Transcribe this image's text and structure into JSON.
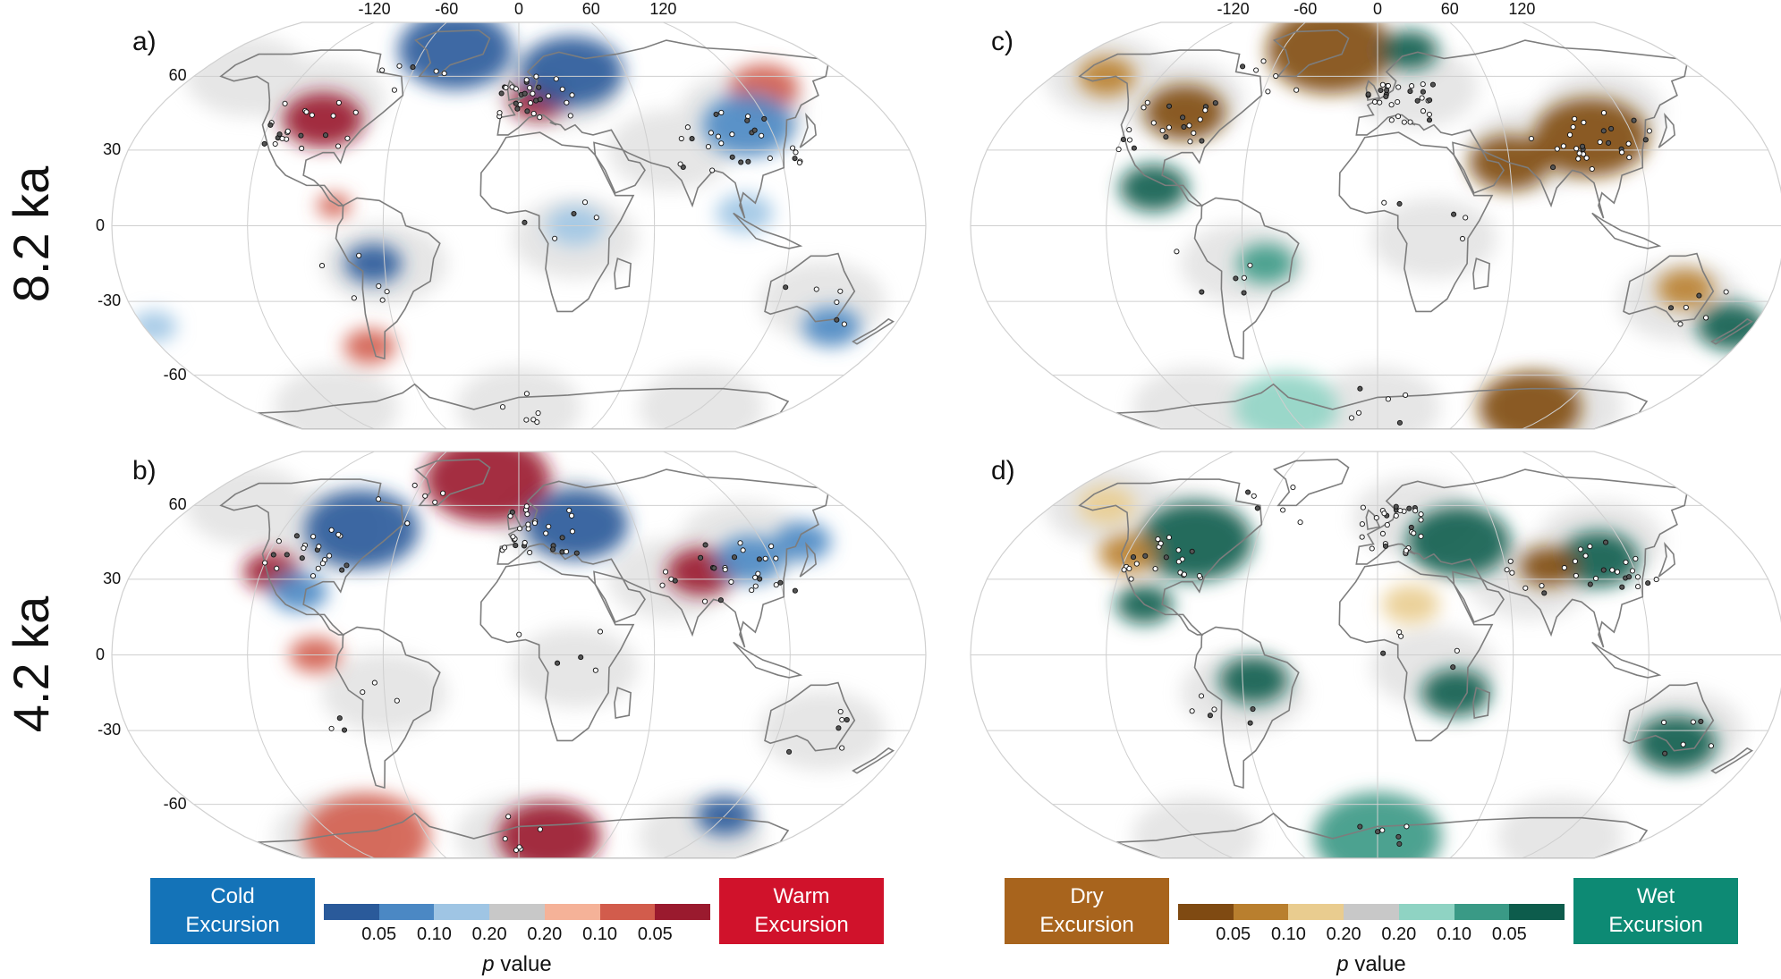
{
  "rows": {
    "top": "8.2 ka",
    "bottom": "4.2 ka"
  },
  "panels": {
    "a": "a)",
    "b": "b)",
    "c": "c)",
    "d": "d)"
  },
  "lon_ticks": [
    "-120",
    "-60",
    "0",
    "60",
    "120"
  ],
  "lat_ticks": [
    "60",
    "30",
    "0",
    "-30",
    "-60"
  ],
  "legend_temperature": {
    "cold_label": "Cold Excursion",
    "warm_label": "Warm Excursion",
    "cold_color": "#1473b8",
    "warm_color": "#d0122b",
    "colors": [
      "#2a5a9a",
      "#4b88c4",
      "#9fc5e4",
      "#c8c8c8",
      "#f5b298",
      "#d25c4c",
      "#9a1a2e"
    ],
    "ticks": [
      "0.05",
      "0.10",
      "0.20",
      "0.20",
      "0.10",
      "0.05"
    ],
    "title_italic": "p",
    "title_rest": "value"
  },
  "legend_hydro": {
    "dry_label": "Dry Excursion",
    "wet_label": "Wet Excursion",
    "dry_color": "#a8641d",
    "wet_color": "#0d8a74",
    "colors": [
      "#7f4a12",
      "#b97f2e",
      "#e9cc8f",
      "#c8c8c8",
      "#8fd3c3",
      "#3a9a86",
      "#0d5c4c"
    ],
    "ticks": [
      "0.05",
      "0.10",
      "0.20",
      "0.20",
      "0.10",
      "0.05"
    ],
    "title_italic": "p",
    "title_rest": "value"
  },
  "map_data": {
    "projection": "Robinson",
    "graticule_lon_step": 60,
    "graticule_lat_step": 30,
    "panel_a": {
      "type": "temperature",
      "blobs": [
        {
          "lon": -95,
          "lat": 42,
          "p": 0.05,
          "dir": "warm",
          "r": 14
        },
        {
          "lon": 10,
          "lat": 50,
          "p": 0.05,
          "dir": "warm",
          "r": 10
        },
        {
          "lon": 130,
          "lat": 55,
          "p": 0.1,
          "dir": "warm",
          "r": 12
        },
        {
          "lon": -75,
          "lat": -48,
          "p": 0.1,
          "dir": "warm",
          "r": 9
        },
        {
          "lon": -82,
          "lat": 8,
          "p": 0.1,
          "dir": "warm",
          "r": 6
        },
        {
          "lon": -40,
          "lat": 72,
          "p": 0.05,
          "dir": "cold",
          "r": 20
        },
        {
          "lon": 30,
          "lat": 62,
          "p": 0.05,
          "dir": "cold",
          "r": 18
        },
        {
          "lon": 110,
          "lat": 40,
          "p": 0.1,
          "dir": "cold",
          "r": 16
        },
        {
          "lon": -65,
          "lat": -15,
          "p": 0.05,
          "dir": "cold",
          "r": 10
        },
        {
          "lon": 25,
          "lat": 0,
          "p": 0.2,
          "dir": "cold",
          "r": 10
        },
        {
          "lon": 100,
          "lat": 5,
          "p": 0.2,
          "dir": "cold",
          "r": 10
        },
        {
          "lon": 150,
          "lat": -40,
          "p": 0.1,
          "dir": "cold",
          "r": 10
        },
        {
          "lon": -175,
          "lat": -40,
          "p": 0.2,
          "dir": "cold",
          "r": 8
        }
      ]
    },
    "panel_b": {
      "type": "temperature",
      "blobs": [
        {
          "lon": -20,
          "lat": 72,
          "p": 0.05,
          "dir": "warm",
          "r": 22
        },
        {
          "lon": -115,
          "lat": 33,
          "p": 0.05,
          "dir": "warm",
          "r": 10
        },
        {
          "lon": 85,
          "lat": 33,
          "p": 0.05,
          "dir": "warm",
          "r": 12
        },
        {
          "lon": -90,
          "lat": 0,
          "p": 0.1,
          "dir": "warm",
          "r": 9
        },
        {
          "lon": -100,
          "lat": -75,
          "p": 0.1,
          "dir": "warm",
          "r": 22
        },
        {
          "lon": 20,
          "lat": -75,
          "p": 0.05,
          "dir": "warm",
          "r": 18
        },
        {
          "lon": -80,
          "lat": 50,
          "p": 0.05,
          "dir": "cold",
          "r": 20
        },
        {
          "lon": 30,
          "lat": 52,
          "p": 0.05,
          "dir": "cold",
          "r": 18
        },
        {
          "lon": 110,
          "lat": 38,
          "p": 0.1,
          "dir": "cold",
          "r": 12
        },
        {
          "lon": 140,
          "lat": 45,
          "p": 0.1,
          "dir": "cold",
          "r": 10
        },
        {
          "lon": -100,
          "lat": 25,
          "p": 0.1,
          "dir": "cold",
          "r": 10
        },
        {
          "lon": 120,
          "lat": -65,
          "p": 0.05,
          "dir": "cold",
          "r": 10
        }
      ]
    },
    "panel_c": {
      "type": "hydroclimate",
      "blobs": [
        {
          "lon": -30,
          "lat": 72,
          "p": 0.05,
          "dir": "dry",
          "r": 22
        },
        {
          "lon": -95,
          "lat": 45,
          "p": 0.05,
          "dir": "dry",
          "r": 14
        },
        {
          "lon": 100,
          "lat": 35,
          "p": 0.05,
          "dir": "dry",
          "r": 20
        },
        {
          "lon": 60,
          "lat": 25,
          "p": 0.05,
          "dir": "dry",
          "r": 14
        },
        {
          "lon": 140,
          "lat": -25,
          "p": 0.1,
          "dir": "dry",
          "r": 10
        },
        {
          "lon": 100,
          "lat": -75,
          "p": 0.05,
          "dir": "dry",
          "r": 18
        },
        {
          "lon": -150,
          "lat": 60,
          "p": 0.1,
          "dir": "dry",
          "r": 10
        },
        {
          "lon": -100,
          "lat": 15,
          "p": 0.05,
          "dir": "wet",
          "r": 12
        },
        {
          "lon": 20,
          "lat": 72,
          "p": 0.05,
          "dir": "wet",
          "r": 10
        },
        {
          "lon": -50,
          "lat": -15,
          "p": 0.1,
          "dir": "wet",
          "r": 10
        },
        {
          "lon": 170,
          "lat": -40,
          "p": 0.05,
          "dir": "wet",
          "r": 12
        },
        {
          "lon": -60,
          "lat": -75,
          "p": 0.2,
          "dir": "wet",
          "r": 18
        }
      ]
    },
    "panel_d": {
      "type": "hydroclimate",
      "blobs": [
        {
          "lon": -90,
          "lat": 45,
          "p": 0.05,
          "dir": "wet",
          "r": 20
        },
        {
          "lon": -105,
          "lat": 20,
          "p": 0.05,
          "dir": "wet",
          "r": 10
        },
        {
          "lon": 40,
          "lat": 45,
          "p": 0.05,
          "dir": "wet",
          "r": 18
        },
        {
          "lon": 105,
          "lat": 38,
          "p": 0.05,
          "dir": "wet",
          "r": 14
        },
        {
          "lon": -55,
          "lat": -10,
          "p": 0.05,
          "dir": "wet",
          "r": 12
        },
        {
          "lon": 35,
          "lat": -15,
          "p": 0.05,
          "dir": "wet",
          "r": 12
        },
        {
          "lon": 140,
          "lat": -35,
          "p": 0.05,
          "dir": "wet",
          "r": 14
        },
        {
          "lon": 0,
          "lat": -75,
          "p": 0.1,
          "dir": "wet",
          "r": 22
        },
        {
          "lon": -120,
          "lat": 40,
          "p": 0.1,
          "dir": "dry",
          "r": 10
        },
        {
          "lon": 80,
          "lat": 35,
          "p": 0.05,
          "dir": "dry",
          "r": 10
        },
        {
          "lon": 15,
          "lat": 20,
          "p": 0.2,
          "dir": "dry",
          "r": 10
        },
        {
          "lon": -150,
          "lat": 60,
          "p": 0.2,
          "dir": "dry",
          "r": 10
        }
      ]
    }
  }
}
